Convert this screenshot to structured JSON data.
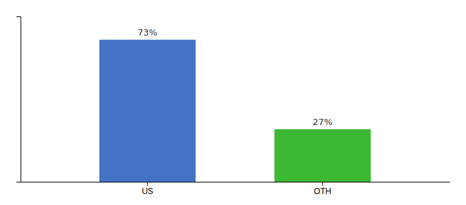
{
  "chart_data": {
    "type": "bar",
    "categories": [
      "US",
      "OTH"
    ],
    "values": [
      73,
      27
    ],
    "value_labels": [
      "73%",
      "27%"
    ],
    "colors": [
      "#4472c4",
      "#3cb832"
    ],
    "ylim": [
      0,
      85
    ],
    "yticks": [],
    "data_labels": true,
    "tick_labels": "x",
    "grid": false
  }
}
